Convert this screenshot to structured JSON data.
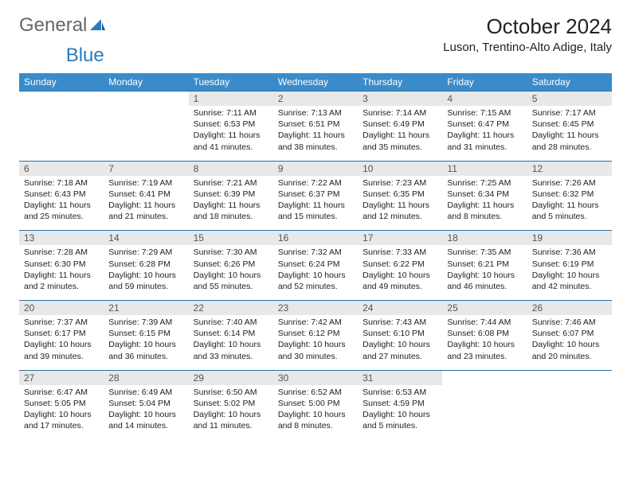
{
  "logo": {
    "text_general": "General",
    "text_blue": "Blue",
    "accent_color": "#2b7bc0"
  },
  "title": "October 2024",
  "location": "Luson, Trentino-Alto Adige, Italy",
  "colors": {
    "header_bg": "#3a8bc9",
    "header_text": "#ffffff",
    "daynum_bg": "#e8e8e8",
    "daynum_text": "#555555",
    "week_border": "#2b6fa3",
    "body_text": "#222222"
  },
  "weekdays": [
    "Sunday",
    "Monday",
    "Tuesday",
    "Wednesday",
    "Thursday",
    "Friday",
    "Saturday"
  ],
  "weeks": [
    {
      "days": [
        null,
        null,
        {
          "n": "1",
          "sunrise": "7:11 AM",
          "sunset": "6:53 PM",
          "day_h": "11",
          "day_m": "41"
        },
        {
          "n": "2",
          "sunrise": "7:13 AM",
          "sunset": "6:51 PM",
          "day_h": "11",
          "day_m": "38"
        },
        {
          "n": "3",
          "sunrise": "7:14 AM",
          "sunset": "6:49 PM",
          "day_h": "11",
          "day_m": "35"
        },
        {
          "n": "4",
          "sunrise": "7:15 AM",
          "sunset": "6:47 PM",
          "day_h": "11",
          "day_m": "31"
        },
        {
          "n": "5",
          "sunrise": "7:17 AM",
          "sunset": "6:45 PM",
          "day_h": "11",
          "day_m": "28"
        }
      ]
    },
    {
      "days": [
        {
          "n": "6",
          "sunrise": "7:18 AM",
          "sunset": "6:43 PM",
          "day_h": "11",
          "day_m": "25"
        },
        {
          "n": "7",
          "sunrise": "7:19 AM",
          "sunset": "6:41 PM",
          "day_h": "11",
          "day_m": "21"
        },
        {
          "n": "8",
          "sunrise": "7:21 AM",
          "sunset": "6:39 PM",
          "day_h": "11",
          "day_m": "18"
        },
        {
          "n": "9",
          "sunrise": "7:22 AM",
          "sunset": "6:37 PM",
          "day_h": "11",
          "day_m": "15"
        },
        {
          "n": "10",
          "sunrise": "7:23 AM",
          "sunset": "6:35 PM",
          "day_h": "11",
          "day_m": "12"
        },
        {
          "n": "11",
          "sunrise": "7:25 AM",
          "sunset": "6:34 PM",
          "day_h": "11",
          "day_m": "8"
        },
        {
          "n": "12",
          "sunrise": "7:26 AM",
          "sunset": "6:32 PM",
          "day_h": "11",
          "day_m": "5"
        }
      ]
    },
    {
      "days": [
        {
          "n": "13",
          "sunrise": "7:28 AM",
          "sunset": "6:30 PM",
          "day_h": "11",
          "day_m": "2"
        },
        {
          "n": "14",
          "sunrise": "7:29 AM",
          "sunset": "6:28 PM",
          "day_h": "10",
          "day_m": "59"
        },
        {
          "n": "15",
          "sunrise": "7:30 AM",
          "sunset": "6:26 PM",
          "day_h": "10",
          "day_m": "55"
        },
        {
          "n": "16",
          "sunrise": "7:32 AM",
          "sunset": "6:24 PM",
          "day_h": "10",
          "day_m": "52"
        },
        {
          "n": "17",
          "sunrise": "7:33 AM",
          "sunset": "6:22 PM",
          "day_h": "10",
          "day_m": "49"
        },
        {
          "n": "18",
          "sunrise": "7:35 AM",
          "sunset": "6:21 PM",
          "day_h": "10",
          "day_m": "46"
        },
        {
          "n": "19",
          "sunrise": "7:36 AM",
          "sunset": "6:19 PM",
          "day_h": "10",
          "day_m": "42"
        }
      ]
    },
    {
      "days": [
        {
          "n": "20",
          "sunrise": "7:37 AM",
          "sunset": "6:17 PM",
          "day_h": "10",
          "day_m": "39"
        },
        {
          "n": "21",
          "sunrise": "7:39 AM",
          "sunset": "6:15 PM",
          "day_h": "10",
          "day_m": "36"
        },
        {
          "n": "22",
          "sunrise": "7:40 AM",
          "sunset": "6:14 PM",
          "day_h": "10",
          "day_m": "33"
        },
        {
          "n": "23",
          "sunrise": "7:42 AM",
          "sunset": "6:12 PM",
          "day_h": "10",
          "day_m": "30"
        },
        {
          "n": "24",
          "sunrise": "7:43 AM",
          "sunset": "6:10 PM",
          "day_h": "10",
          "day_m": "27"
        },
        {
          "n": "25",
          "sunrise": "7:44 AM",
          "sunset": "6:08 PM",
          "day_h": "10",
          "day_m": "23"
        },
        {
          "n": "26",
          "sunrise": "7:46 AM",
          "sunset": "6:07 PM",
          "day_h": "10",
          "day_m": "20"
        }
      ]
    },
    {
      "days": [
        {
          "n": "27",
          "sunrise": "6:47 AM",
          "sunset": "5:05 PM",
          "day_h": "10",
          "day_m": "17"
        },
        {
          "n": "28",
          "sunrise": "6:49 AM",
          "sunset": "5:04 PM",
          "day_h": "10",
          "day_m": "14"
        },
        {
          "n": "29",
          "sunrise": "6:50 AM",
          "sunset": "5:02 PM",
          "day_h": "10",
          "day_m": "11"
        },
        {
          "n": "30",
          "sunrise": "6:52 AM",
          "sunset": "5:00 PM",
          "day_h": "10",
          "day_m": "8"
        },
        {
          "n": "31",
          "sunrise": "6:53 AM",
          "sunset": "4:59 PM",
          "day_h": "10",
          "day_m": "5"
        },
        null,
        null
      ]
    }
  ]
}
